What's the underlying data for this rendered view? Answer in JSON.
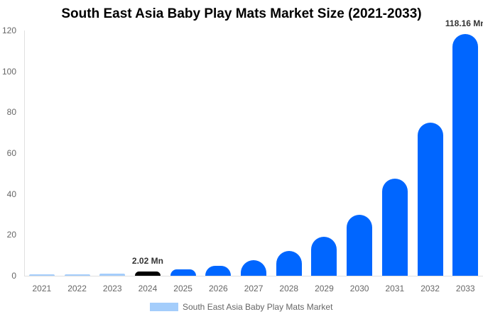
{
  "chart_data": {
    "type": "bar",
    "title": "South East Asia Baby Play Mats Market Size (2021-2033)",
    "xlabel": "",
    "ylabel": "",
    "ylim": [
      0,
      120
    ],
    "yticks": [
      0,
      20,
      40,
      60,
      80,
      100,
      120
    ],
    "grid": false,
    "legend_position": "bottom",
    "categories": [
      "2021",
      "2022",
      "2023",
      "2024",
      "2025",
      "2026",
      "2027",
      "2028",
      "2029",
      "2030",
      "2031",
      "2032",
      "2033"
    ],
    "series": [
      {
        "name": "South East Asia Baby Play Mats Market",
        "values": [
          0.4,
          0.7,
          1.1,
          2.02,
          3.1,
          4.8,
          7.5,
          12.0,
          19.0,
          30.0,
          47.5,
          75.0,
          118.16
        ]
      }
    ],
    "bar_colors": [
      "#a4cdfb",
      "#a4cdfb",
      "#a4cdfb",
      "#000000",
      "#0066ff",
      "#0066ff",
      "#0066ff",
      "#0066ff",
      "#0066ff",
      "#0066ff",
      "#0066ff",
      "#0066ff",
      "#0066ff"
    ],
    "annotations": [
      {
        "category": "2024",
        "text": "2.02 Mn"
      },
      {
        "category": "2033",
        "text": "118.16 Mn"
      }
    ]
  },
  "title": "South East Asia Baby Play Mats Market Size (2021-2033)",
  "legend": {
    "label": "South East Asia Baby Play Mats Market",
    "color": "#a4cdfb"
  },
  "labels": {
    "y2024": "2.02 Mn",
    "y2033": "118.16 Mn"
  }
}
